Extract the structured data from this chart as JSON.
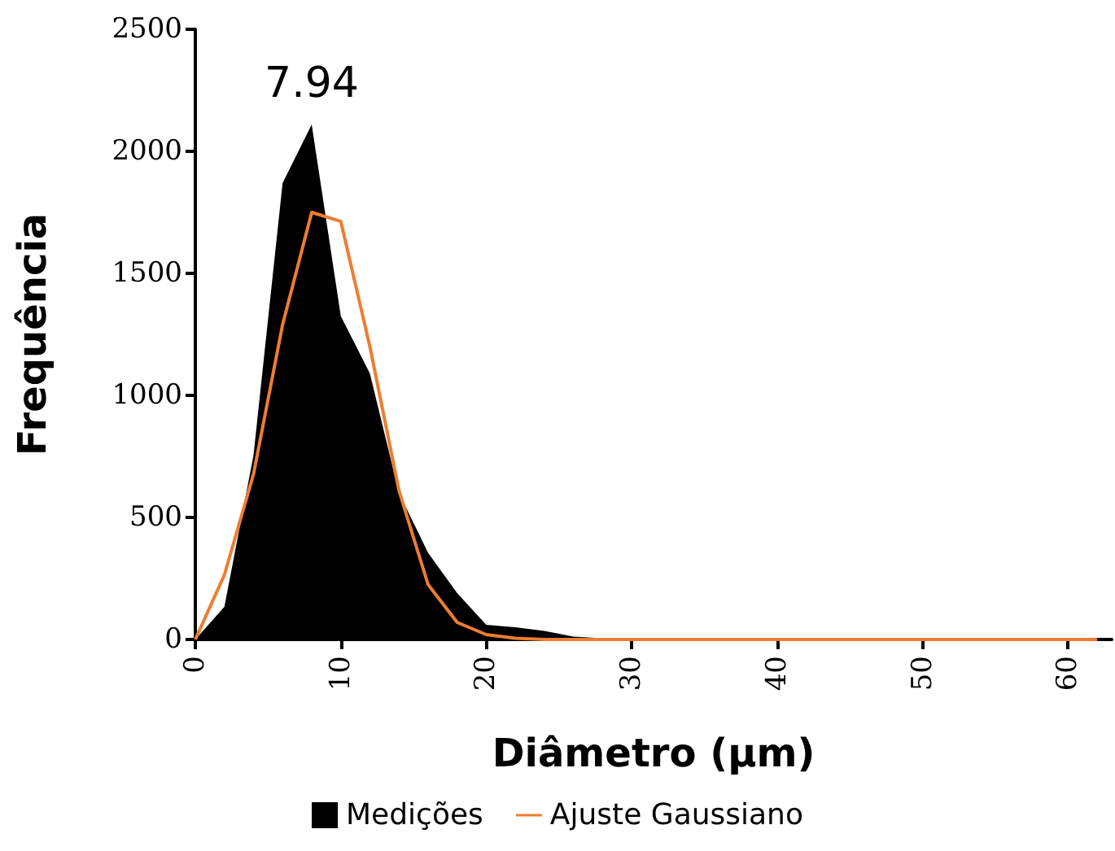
{
  "chart_data": {
    "type": "area",
    "xlabel": "Diâmetro (µm)",
    "ylabel": "Frequência",
    "x": [
      0,
      2,
      4,
      6,
      8,
      10,
      12,
      14,
      16,
      18,
      20,
      22,
      24,
      26,
      28,
      30,
      32,
      34,
      36,
      38,
      40,
      42,
      44,
      46,
      48,
      50,
      52,
      54,
      56,
      58,
      60,
      62
    ],
    "series": [
      {
        "name": "Medições",
        "color": "#000000",
        "values": [
          0,
          134,
          755,
          1870,
          2110,
          1325,
          1090,
          600,
          355,
          190,
          60,
          50,
          35,
          12,
          5,
          2,
          0,
          0,
          0,
          0,
          0,
          0,
          0,
          0,
          0,
          0,
          0,
          0,
          0,
          0,
          0,
          0
        ]
      },
      {
        "name": "Ajuste Gaussiano",
        "type": "line",
        "color": "#ed7d31",
        "values": [
          0,
          265,
          677,
          1290,
          1750,
          1713,
          1200,
          610,
          225,
          70,
          20,
          5,
          0,
          0,
          0,
          0,
          0,
          0,
          0,
          0,
          0,
          0,
          0,
          0,
          0,
          0,
          0,
          0,
          0,
          0,
          0,
          0
        ]
      }
    ],
    "annotations": [
      {
        "text": "7.94",
        "x": 8,
        "y": 2110
      }
    ],
    "xlim": [
      0,
      63
    ],
    "xticks": [
      0,
      10,
      20,
      30,
      40,
      50,
      60
    ],
    "ylim": [
      0,
      2500
    ],
    "yticks": [
      0,
      500,
      1000,
      1500,
      2000,
      2500
    ],
    "grid": false,
    "legend": "bottom",
    "marker": "none",
    "line_style": "solid"
  }
}
